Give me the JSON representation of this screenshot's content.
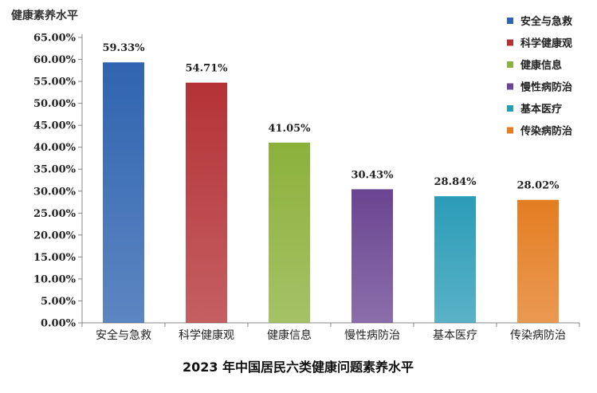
{
  "chart_data": {
    "type": "bar",
    "title": "2023 年中国居民六类健康问题素养水平",
    "ylabel": "健康素养水平",
    "xlabel": "",
    "categories": [
      "安全与急救",
      "科学健康观",
      "健康信息",
      "慢性病防治",
      "基本医疗",
      "传染病防治"
    ],
    "values": [
      59.33,
      54.71,
      41.05,
      30.43,
      28.84,
      28.02
    ],
    "data_labels": [
      "59.33%",
      "54.71%",
      "41.05%",
      "30.43%",
      "28.84%",
      "28.02%"
    ],
    "colors": [
      "#2f64b0",
      "#b43236",
      "#8cb13b",
      "#6a4592",
      "#2b9cb7",
      "#e47d22"
    ],
    "ylim": [
      0,
      65
    ],
    "ytick_step": 5,
    "ytick_labels": [
      "0.00%",
      "5.00%",
      "10.00%",
      "15.00%",
      "20.00%",
      "25.00%",
      "30.00%",
      "35.00%",
      "40.00%",
      "45.00%",
      "50.00%",
      "55.00%",
      "60.00%",
      "65.00%"
    ],
    "grid": false,
    "legend": {
      "position": "top-right",
      "entries": [
        "安全与急救",
        "科学健康观",
        "健康信息",
        "慢性病防治",
        "基本医疗",
        "传染病防治"
      ]
    }
  }
}
